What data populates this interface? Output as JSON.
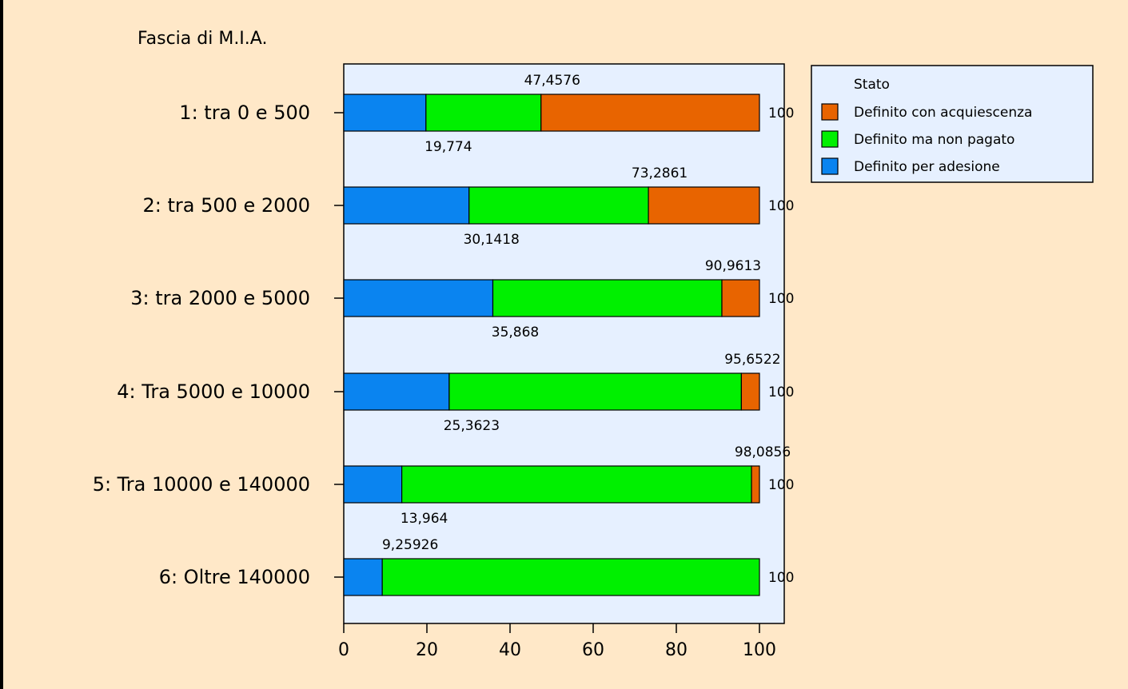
{
  "chart_data": {
    "type": "bar",
    "orientation": "horizontal",
    "stacked": true,
    "axis_title": "Fascia di M.I.A.",
    "categories": [
      "1: tra 0 e 500",
      "2: tra 500 e 2000",
      "3: tra 2000 e 5000",
      "4: Tra 5000 e 10000",
      "5: Tra 10000 e 140000",
      "6: Oltre 140000"
    ],
    "xlim": [
      0,
      100
    ],
    "xticks": [
      0,
      20,
      40,
      60,
      80,
      100
    ],
    "series": [
      {
        "name": "Definito per adesione",
        "color": "#0a84f0",
        "values": [
          19.774,
          30.1418,
          35.868,
          25.3623,
          13.964,
          9.25926
        ]
      },
      {
        "name": "Definito ma non pagato",
        "color": "#00f000",
        "values": [
          27.6836,
          43.1443,
          55.0933,
          70.2899,
          84.1216,
          90.74074
        ]
      },
      {
        "name": "Definito con acquiescenza",
        "color": "#e86400",
        "values": [
          52.5424,
          26.7139,
          9.0387,
          4.3478,
          1.9144,
          0
        ]
      }
    ],
    "labels": {
      "adesione": [
        "19,774",
        "30,1418",
        "35,868",
        "25,3623",
        "13,964",
        "9,25926"
      ],
      "cumulative": [
        "47,4576",
        "73,2861",
        "90,9613",
        "95,6522",
        "98,0856",
        ""
      ],
      "total": [
        "100",
        "100",
        "100",
        "100",
        "100",
        "100"
      ]
    },
    "legend": {
      "title": "Stato",
      "position": "top-right",
      "entries": [
        {
          "name": "Definito con acquiescenza",
          "color": "#e86400"
        },
        {
          "name": "Definito ma non pagato",
          "color": "#00f000"
        },
        {
          "name": "Definito per adesione",
          "color": "#0a84f0"
        }
      ]
    }
  }
}
